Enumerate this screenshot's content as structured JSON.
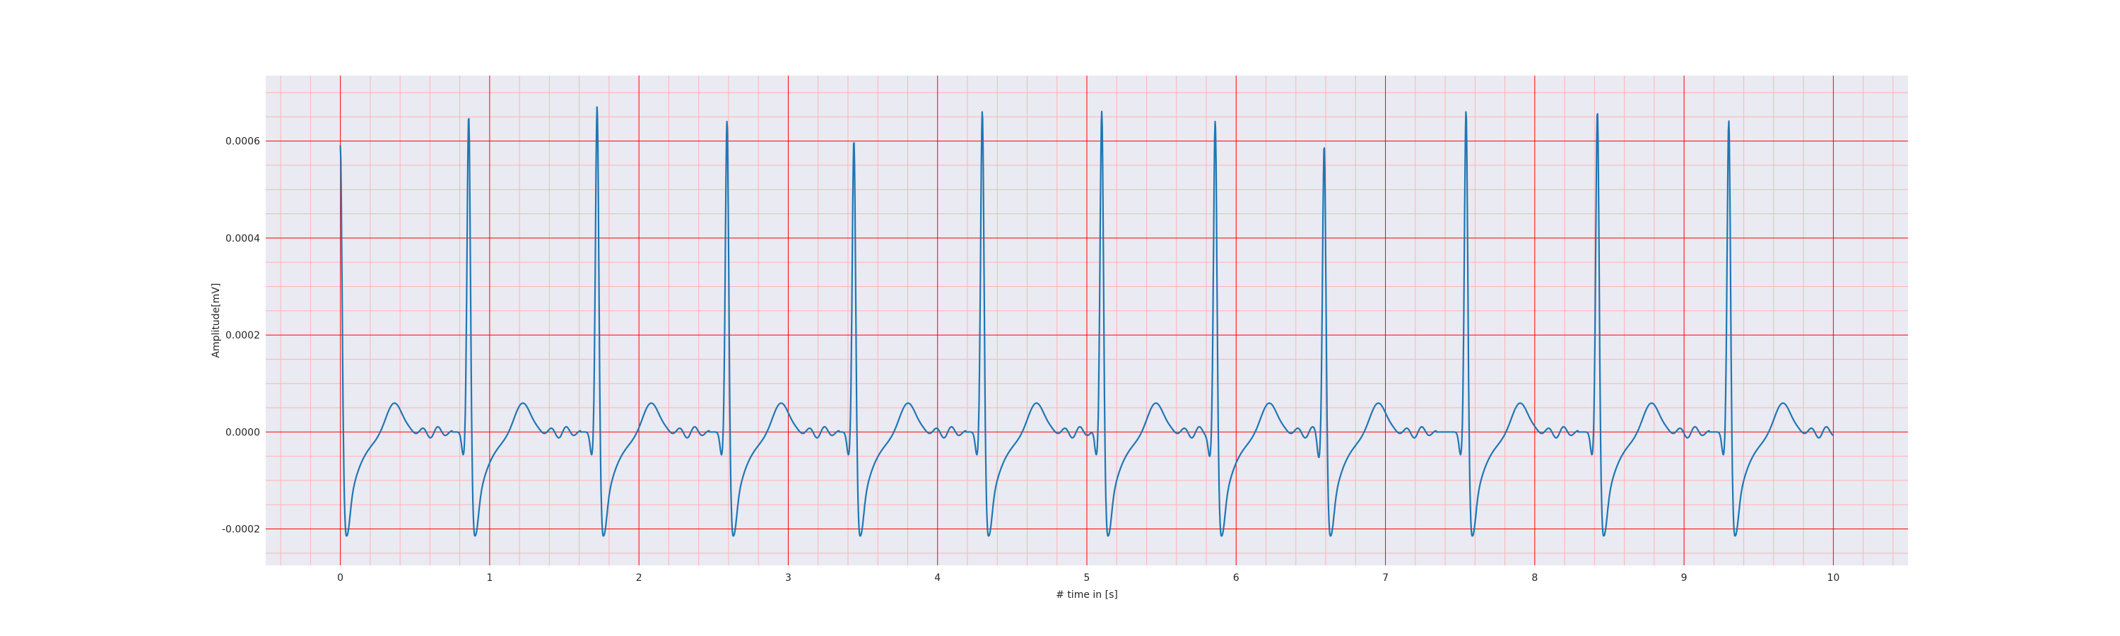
{
  "chart_data": {
    "type": "line",
    "xlabel": "# time in [s]",
    "ylabel": "Amplitude[mV]",
    "xlim": [
      -0.5,
      10.5
    ],
    "ylim": [
      -0.000275,
      0.000735
    ],
    "x_ticks": [
      0,
      1,
      2,
      3,
      4,
      5,
      6,
      7,
      8,
      9,
      10
    ],
    "x_tick_labels": [
      "0",
      "1",
      "2",
      "3",
      "4",
      "5",
      "6",
      "7",
      "8",
      "9",
      "10"
    ],
    "y_ticks": [
      -0.0002,
      0.0,
      0.0002,
      0.0004,
      0.0006
    ],
    "y_tick_labels": [
      "-0.0002",
      "0.0000",
      "0.0002",
      "0.0004",
      "0.0006"
    ],
    "grid": true,
    "major_grid_color": "#ff0000",
    "minor_grid_color": "#ffb3b3",
    "background_color": "#eaeaf2",
    "line_color": "#1f77b4",
    "r_peaks": [
      {
        "t": 0.0,
        "amp": 0.00061
      },
      {
        "t": 0.86,
        "amp": 0.00067
      },
      {
        "t": 1.72,
        "amp": 0.00069
      },
      {
        "t": 2.59,
        "amp": 0.00066
      },
      {
        "t": 3.44,
        "amp": 0.00062
      },
      {
        "t": 4.3,
        "amp": 0.00068
      },
      {
        "t": 5.1,
        "amp": 0.00068
      },
      {
        "t": 5.86,
        "amp": 0.00066
      },
      {
        "t": 6.59,
        "amp": 0.00061
      },
      {
        "t": 7.54,
        "amp": 0.00068
      },
      {
        "t": 8.42,
        "amp": 0.00068
      },
      {
        "t": 9.3,
        "amp": 0.00066
      }
    ],
    "t_wave_amplitude": 6.5e-05,
    "s_wave_amplitude": -0.000215,
    "q_wave_amplitude": -5e-05,
    "end_time": 10.0
  }
}
